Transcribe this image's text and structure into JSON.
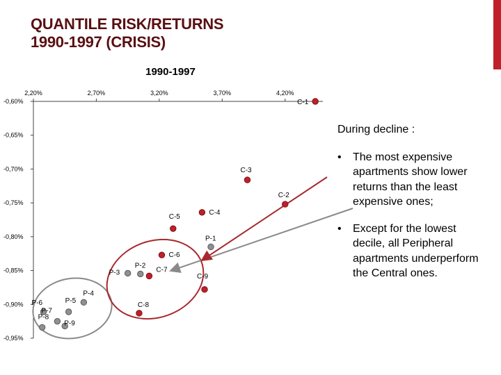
{
  "slide": {
    "title_line1": "QUANTILE RISK/RETURNS",
    "title_line2": "1990-1997 (CRISIS)",
    "accent_color": "#c0202a",
    "title_color": "#5a0f12"
  },
  "chart_data": {
    "type": "scatter",
    "title": "1990-1997",
    "xlim": [
      2.2,
      4.5
    ],
    "ylim": [
      -0.95,
      -0.6
    ],
    "x_ticks": [
      2.2,
      2.7,
      3.2,
      3.7,
      4.2
    ],
    "x_tick_labels": [
      "2,20%",
      "2,70%",
      "3,20%",
      "3,70%",
      "4,20%"
    ],
    "y_ticks": [
      -0.6,
      -0.65,
      -0.7,
      -0.75,
      -0.8,
      -0.85,
      -0.9,
      -0.95
    ],
    "y_tick_labels": [
      "-0,60%",
      "-0,65%",
      "-0,70%",
      "-0,75%",
      "-0,80%",
      "-0,85%",
      "-0,90%",
      "-0,95%"
    ],
    "x_axis_position": "top",
    "grid": false,
    "series": [
      {
        "color": "#c0202a",
        "points": [
          {
            "label": "C-1",
            "x": 4.44,
            "y": -0.6
          },
          {
            "label": "C-2",
            "x": 4.2,
            "y": -0.752
          },
          {
            "label": "C-3",
            "x": 3.9,
            "y": -0.716
          },
          {
            "label": "C-4",
            "x": 3.54,
            "y": -0.764
          },
          {
            "label": "C-5",
            "x": 3.31,
            "y": -0.788
          },
          {
            "label": "C-6",
            "x": 3.22,
            "y": -0.827
          },
          {
            "label": "C-7",
            "x": 3.12,
            "y": -0.858
          },
          {
            "label": "C-8",
            "x": 3.04,
            "y": -0.913
          },
          {
            "label": "C-9",
            "x": 3.56,
            "y": -0.878
          }
        ]
      },
      {
        "color": "#909090",
        "points": [
          {
            "label": "P-1",
            "x": 3.61,
            "y": -0.815
          },
          {
            "label": "P-2",
            "x": 3.05,
            "y": -0.855
          },
          {
            "label": "P-3",
            "x": 2.95,
            "y": -0.854
          },
          {
            "label": "P-4",
            "x": 2.6,
            "y": -0.897
          },
          {
            "label": "P-5",
            "x": 2.48,
            "y": -0.911
          },
          {
            "label": "P-6",
            "x": 2.28,
            "y": -0.911
          },
          {
            "label": "P-7",
            "x": 2.39,
            "y": -0.925
          },
          {
            "label": "P-8",
            "x": 2.27,
            "y": -0.934
          },
          {
            "label": "P-9",
            "x": 2.45,
            "y": -0.932
          }
        ]
      }
    ]
  },
  "side_text": {
    "heading": "During decline :",
    "bullet_char": "•",
    "bullets": [
      "The most expensive apartments show lower returns than the least expensive ones;",
      "Except for the lowest decile, all Peripheral apartments underperform the Central ones."
    ]
  }
}
